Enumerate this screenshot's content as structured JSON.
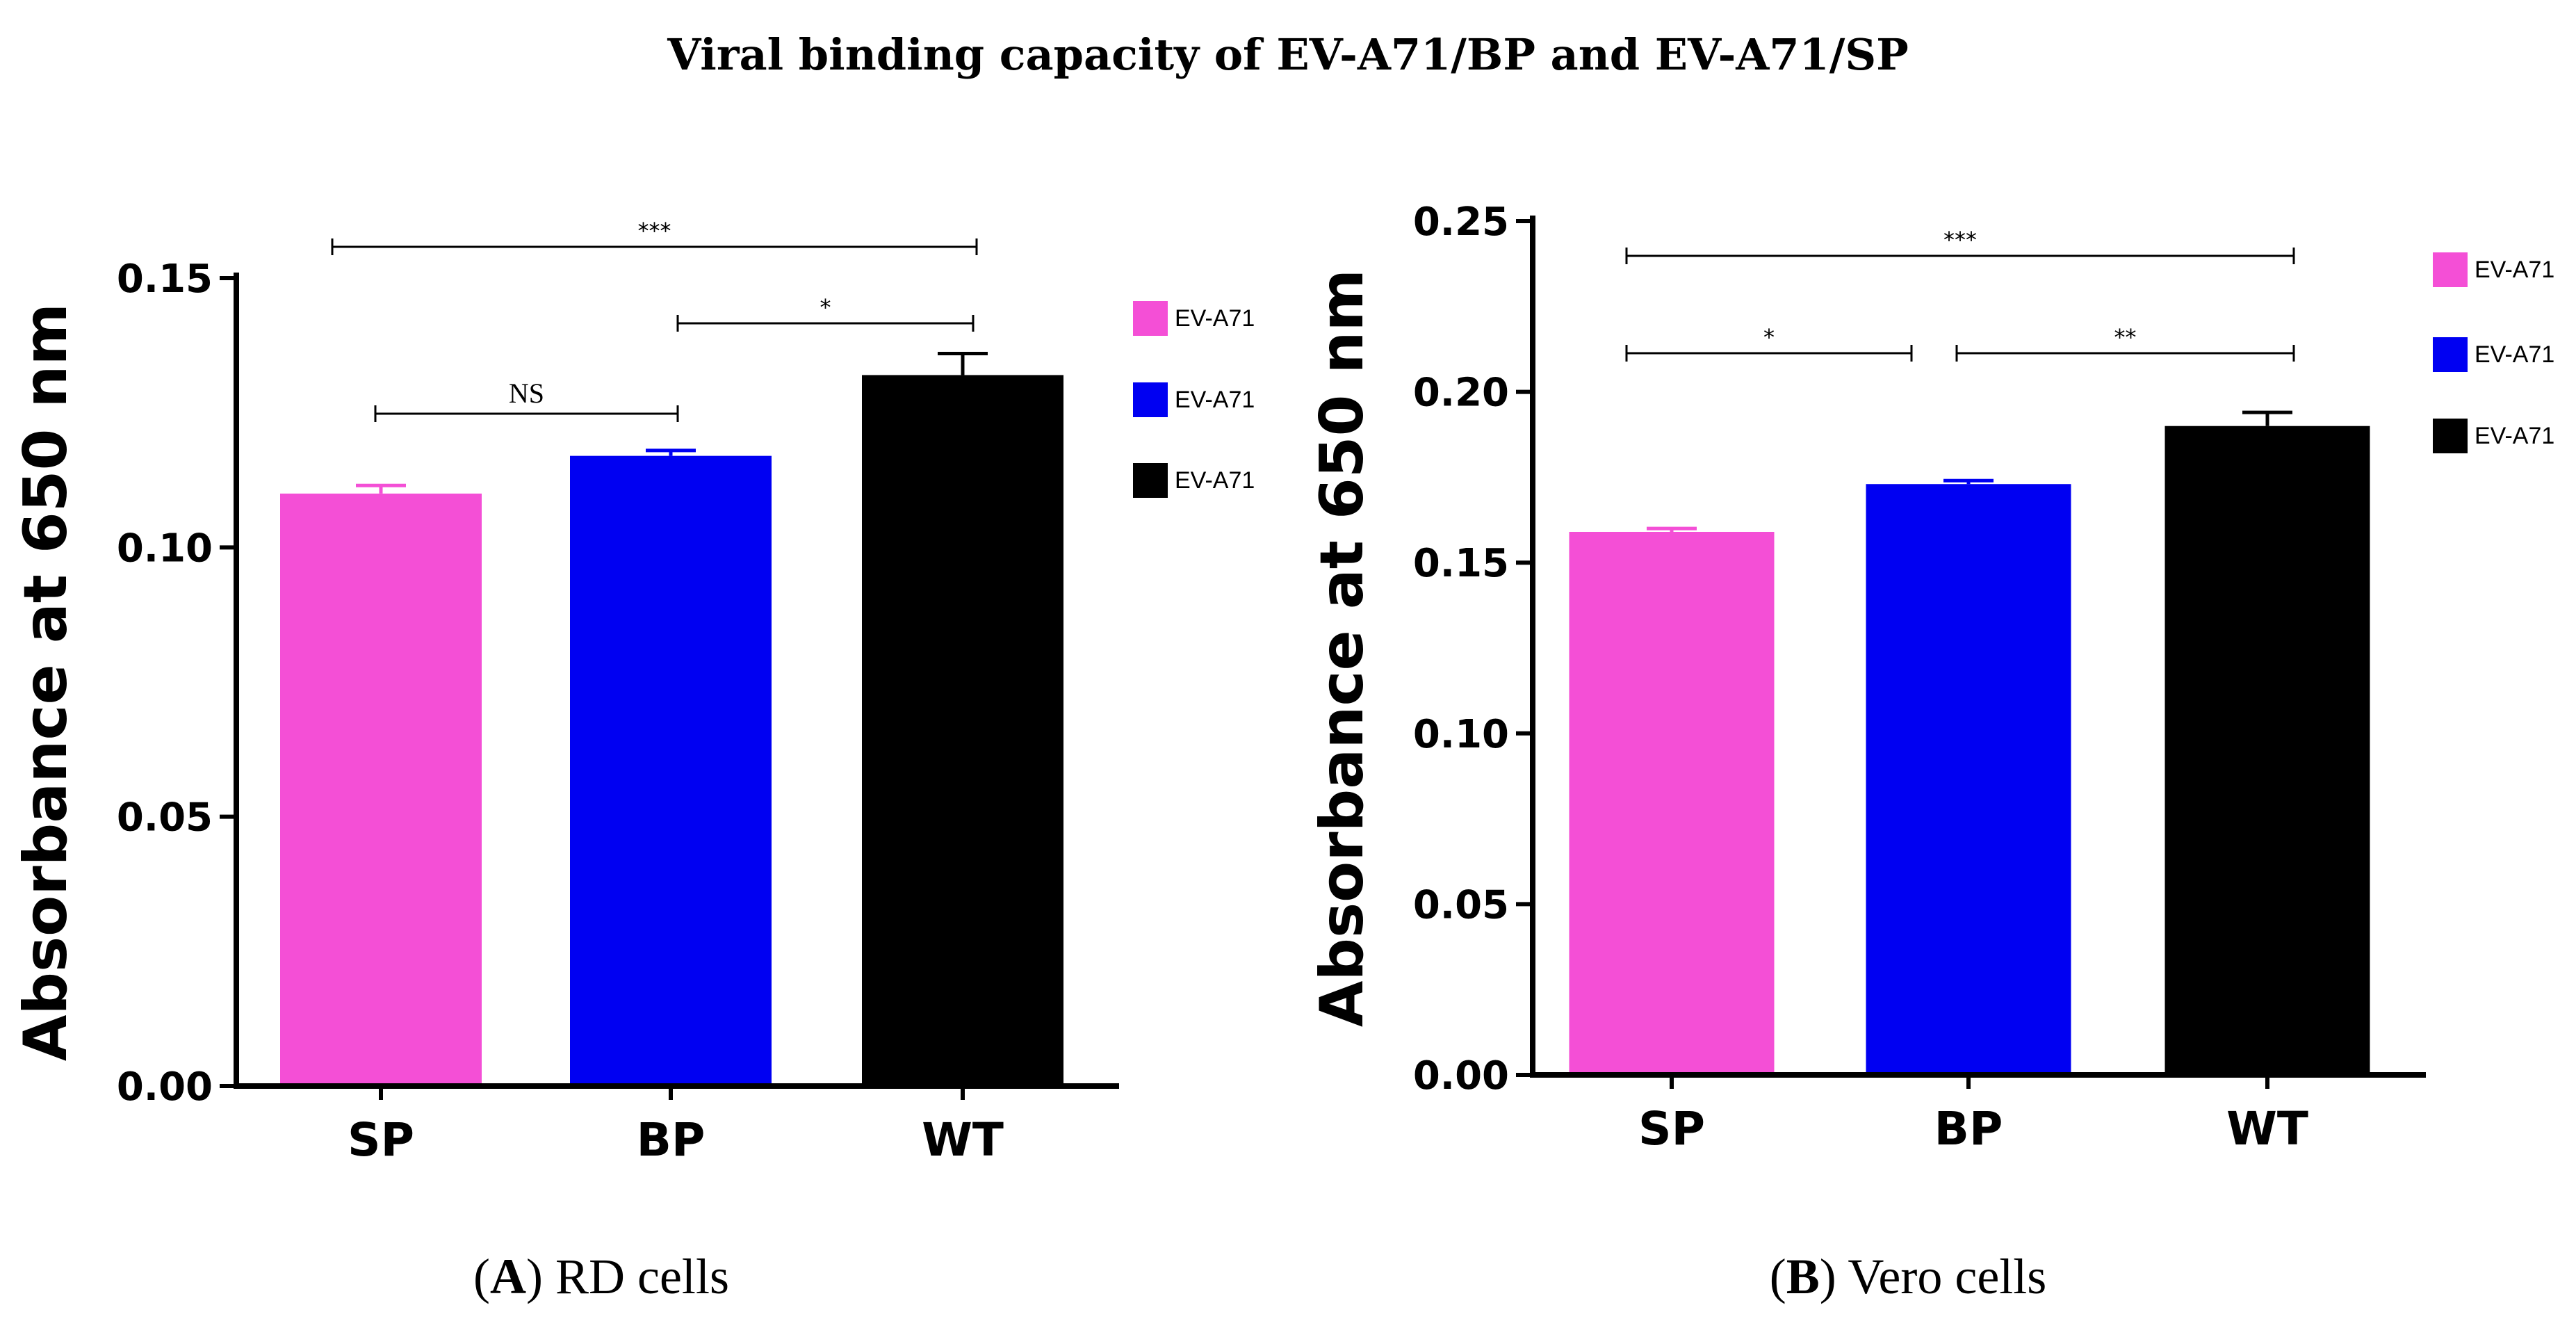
{
  "figure": {
    "title": "Viral binding capacity of EV-A71/BP and EV-A71/SP"
  },
  "colors": {
    "SP": "#f44fd6",
    "BP": "#0000f2",
    "WT": "#000000"
  },
  "chart_data": [
    {
      "type": "bar",
      "panel": "A",
      "caption_letter": "A",
      "caption_text": "RD cells",
      "ylabel": "Absorbance at 650 nm",
      "xlabel": "",
      "categories": [
        "SP",
        "BP",
        "WT"
      ],
      "values": [
        0.11,
        0.117,
        0.132
      ],
      "errors": [
        0.0015,
        0.001,
        0.004
      ],
      "ylim": [
        0,
        0.15
      ],
      "yticks": [
        0.0,
        0.05,
        0.1,
        0.15
      ],
      "ytick_labels": [
        "0.00",
        "0.05",
        "0.10",
        "0.15"
      ],
      "legend": [
        "EV-A71",
        "EV-A71",
        "EV-A71"
      ],
      "legend_position": "right",
      "significance": [
        {
          "from": 0,
          "to": 1,
          "label": "NS",
          "level": 1
        },
        {
          "from": 1,
          "to": 2,
          "label": "*",
          "level": 2
        },
        {
          "from": 0,
          "to": 2,
          "label": "***",
          "level": 3
        }
      ]
    },
    {
      "type": "bar",
      "panel": "B",
      "caption_letter": "B",
      "caption_text": "Vero cells",
      "ylabel": "Absorbance at 650 nm",
      "xlabel": "",
      "categories": [
        "SP",
        "BP",
        "WT"
      ],
      "values": [
        0.159,
        0.173,
        0.19
      ],
      "errors": [
        0.001,
        0.001,
        0.004
      ],
      "ylim": [
        0,
        0.25
      ],
      "yticks": [
        0.0,
        0.05,
        0.1,
        0.15,
        0.2,
        0.25
      ],
      "ytick_labels": [
        "0.00",
        "0.05",
        "0.10",
        "0.15",
        "0.20",
        "0.25"
      ],
      "legend": [
        "EV-A71",
        "EV-A71",
        "EV-A71"
      ],
      "legend_position": "right",
      "significance": [
        {
          "from": 0,
          "to": 1,
          "label": "*",
          "level": 1
        },
        {
          "from": 1,
          "to": 2,
          "label": "**",
          "level": 1
        },
        {
          "from": 0,
          "to": 2,
          "label": "***",
          "level": 2
        }
      ]
    }
  ]
}
